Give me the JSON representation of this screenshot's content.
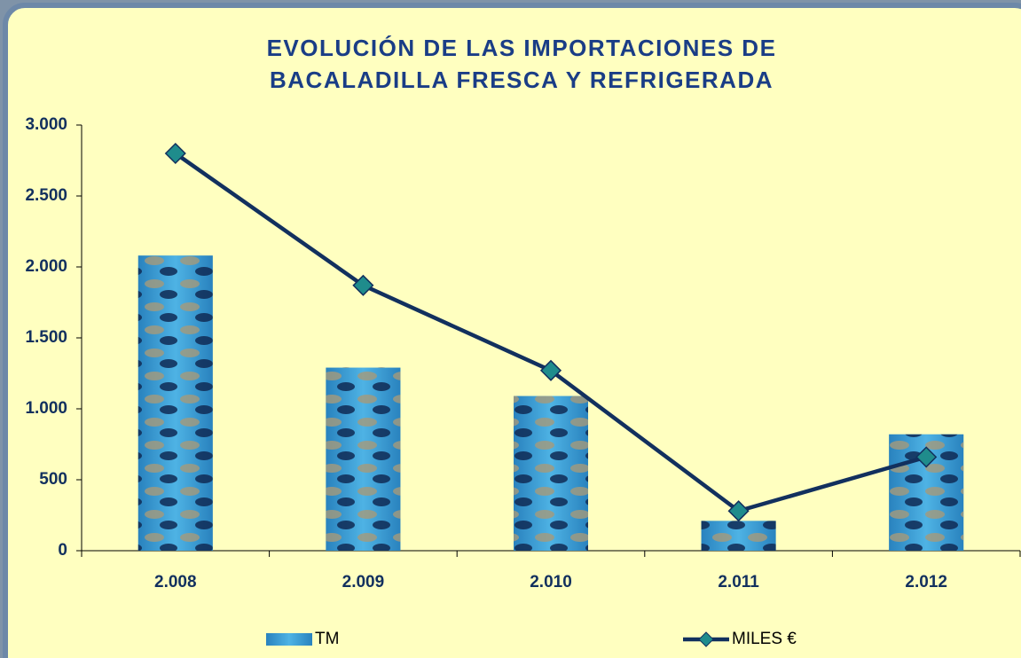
{
  "chart_data": {
    "type": "bar-line",
    "title": "EVOLUCIÓN DE LAS IMPORTACIONES DE BACALADILLA FRESCA Y REFRIGERADA",
    "categories": [
      "2.008",
      "2.009",
      "2.010",
      "2.011",
      "2.012"
    ],
    "series": [
      {
        "name": "TM",
        "type": "bar",
        "color": "#3b9fd6",
        "values": [
          2080,
          1290,
          1090,
          210,
          820
        ]
      },
      {
        "name": "MILES €",
        "type": "line",
        "color": "#12305e",
        "marker_color": "#1f8c8c",
        "values": [
          2800,
          1870,
          1270,
          280,
          660
        ]
      }
    ],
    "ylim": [
      0,
      3000
    ],
    "yticks": [
      0,
      500,
      {
        "value": 1000,
        "label": "1.000"
      },
      {
        "value": 1500,
        "label": "1.500"
      },
      {
        "value": 2000,
        "label": "2.000"
      },
      {
        "value": 2500,
        "label": "2.500"
      },
      {
        "value": 3000,
        "label": "3.000"
      }
    ],
    "legend": "bottom"
  }
}
